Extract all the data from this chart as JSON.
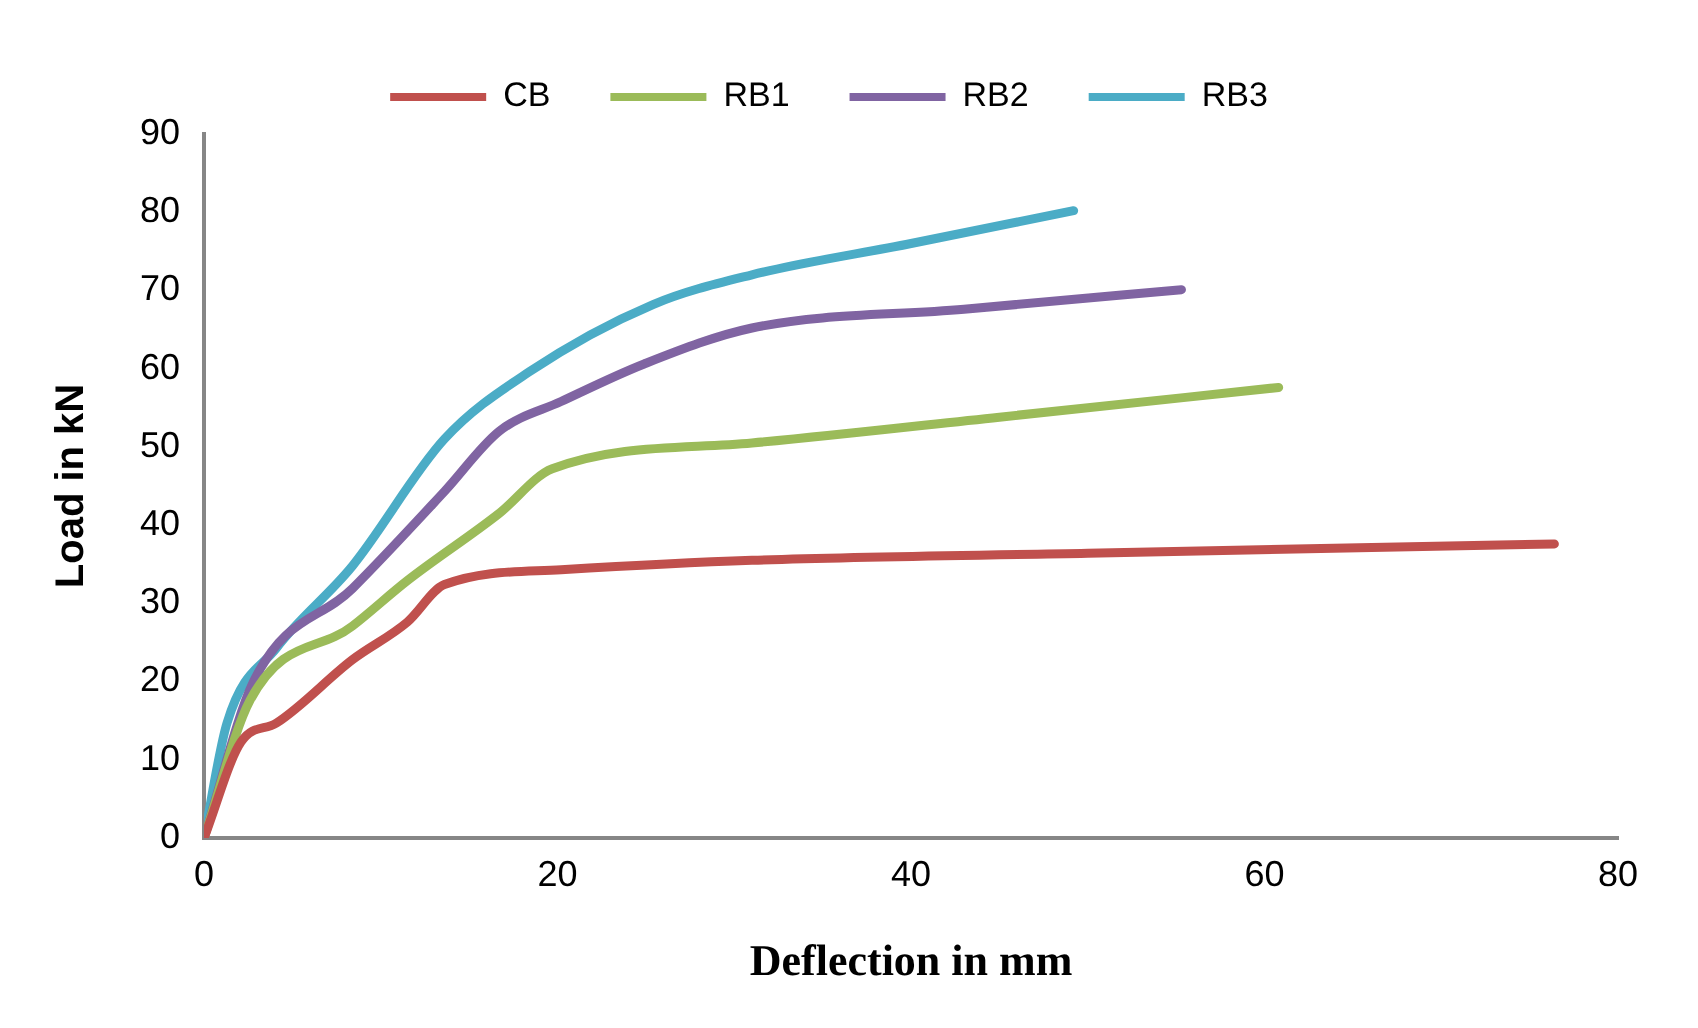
{
  "chart_data": {
    "type": "line",
    "xlabel": "Deflection in mm",
    "ylabel": "Load in kN",
    "xlim": [
      0,
      80
    ],
    "xticks": [
      0,
      20,
      40,
      60,
      80
    ],
    "ylim": [
      0,
      90
    ],
    "yticks": [
      0,
      10,
      20,
      30,
      40,
      50,
      60,
      70,
      80,
      90
    ],
    "grid": false,
    "legend": "top",
    "marker": "none",
    "line_style": "solid",
    "series": [
      {
        "name": "CB",
        "color": "#c0504d",
        "x": [
          0,
          2.1,
          4.1,
          8.4,
          11.5,
          13.6,
          20.2,
          31,
          50,
          76.4
        ],
        "values": [
          0,
          12.3,
          14.7,
          22.8,
          27.6,
          32.4,
          34.3,
          35.5,
          36.4,
          37.6
        ]
      },
      {
        "name": "RB1",
        "color": "#9bbb59",
        "x": [
          0,
          2.6,
          8.4,
          11.5,
          16.7,
          19.7,
          31,
          45,
          60.8
        ],
        "values": [
          0,
          17.6,
          27.1,
          32.9,
          41.5,
          47.2,
          50.5,
          53.8,
          57.6
        ]
      },
      {
        "name": "RB2",
        "color": "#8064a2",
        "x": [
          0,
          2.8,
          8.4,
          13.6,
          16.7,
          20.2,
          24.9,
          31,
          43,
          55.3
        ],
        "values": [
          0,
          20,
          31.9,
          44.3,
          52,
          55.8,
          60.6,
          65.2,
          67.6,
          70.1
        ]
      },
      {
        "name": "RB3",
        "color": "#4bacc6",
        "x": [
          0,
          1.3,
          4.1,
          8.4,
          13.6,
          18.4,
          25.4,
          31,
          40,
          49.2
        ],
        "values": [
          0,
          14.7,
          24.3,
          34.8,
          51,
          59.6,
          68.2,
          72,
          76,
          80.2
        ]
      }
    ]
  }
}
